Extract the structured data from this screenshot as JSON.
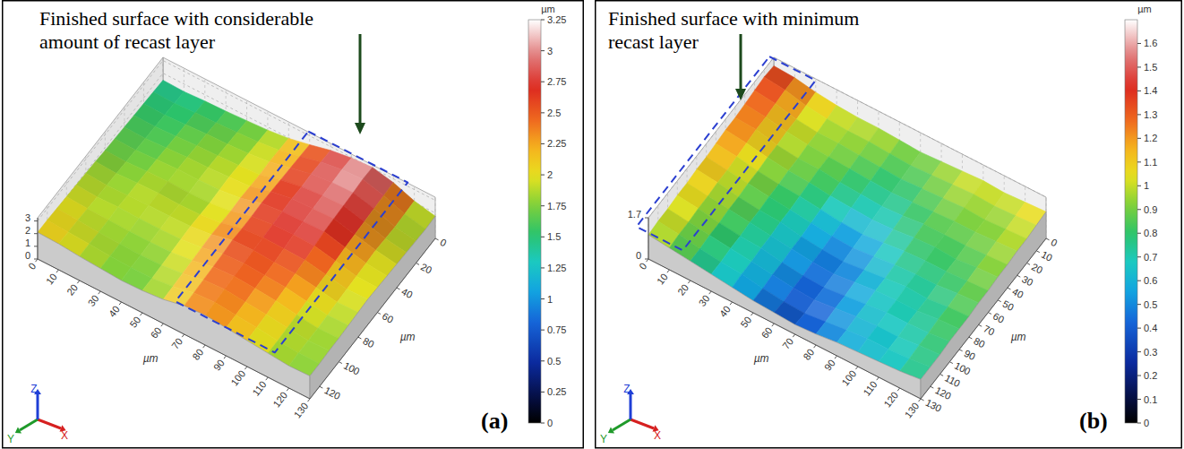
{
  "chart_data": [
    {
      "type": "surface",
      "annotation": [
        "Finished surface with considerable",
        "amount of recast layer"
      ],
      "panel_label": "(a)",
      "x_label": "µm",
      "y_label": "µm",
      "xlim": [
        0,
        130
      ],
      "xticks": [
        0,
        10,
        20,
        30,
        40,
        50,
        60,
        70,
        80,
        90,
        100,
        110,
        120,
        130
      ],
      "ylim": [
        0,
        130
      ],
      "yticks": [
        0,
        20,
        40,
        60,
        80,
        100,
        120
      ],
      "zlim": [
        0,
        3.25
      ],
      "zticks": [
        0,
        1,
        2,
        3
      ],
      "grid": true,
      "axes_triad": [
        "X",
        "Y",
        "Z"
      ],
      "x": [
        0,
        10,
        20,
        30,
        40,
        50,
        60,
        70,
        80,
        90,
        100,
        110,
        120,
        130
      ],
      "y": [
        0,
        10,
        20,
        30,
        40,
        50,
        60,
        70,
        80,
        90,
        100,
        110,
        120,
        130
      ],
      "z": [
        [
          1.45,
          1.4,
          1.5,
          1.55,
          1.65,
          1.75,
          1.95,
          2.3,
          2.7,
          2.95,
          3.05,
          2.7,
          2.1,
          1.75
        ],
        [
          1.5,
          1.45,
          1.55,
          1.6,
          1.7,
          1.8,
          2.0,
          2.35,
          2.75,
          3.0,
          3.1,
          2.65,
          2.05,
          1.7
        ],
        [
          1.55,
          1.5,
          1.6,
          1.7,
          1.75,
          1.85,
          2.05,
          2.4,
          2.8,
          2.95,
          3.0,
          2.6,
          2.0,
          1.75
        ],
        [
          1.6,
          1.55,
          1.65,
          1.75,
          1.8,
          1.9,
          2.0,
          2.45,
          2.75,
          2.9,
          2.95,
          2.55,
          2.05,
          1.8
        ],
        [
          1.65,
          1.6,
          1.7,
          1.8,
          1.85,
          1.95,
          2.05,
          2.5,
          2.8,
          2.85,
          2.9,
          2.5,
          2.1,
          1.85
        ],
        [
          1.7,
          1.65,
          1.75,
          1.85,
          1.85,
          1.9,
          2.1,
          2.55,
          2.75,
          2.8,
          2.85,
          2.45,
          2.05,
          1.9
        ],
        [
          1.75,
          1.7,
          1.8,
          1.85,
          1.8,
          1.85,
          2.05,
          2.5,
          2.7,
          2.75,
          2.7,
          2.35,
          2.0,
          1.95
        ],
        [
          1.85,
          1.75,
          1.85,
          1.9,
          1.85,
          1.9,
          2.1,
          2.5,
          2.65,
          2.6,
          2.55,
          2.25,
          1.95,
          2.0
        ],
        [
          1.9,
          1.8,
          1.85,
          1.9,
          1.9,
          1.95,
          2.15,
          2.55,
          2.6,
          2.5,
          2.45,
          2.2,
          1.9,
          1.95
        ],
        [
          1.95,
          1.85,
          1.9,
          1.85,
          1.85,
          1.9,
          2.1,
          2.45,
          2.55,
          2.45,
          2.35,
          2.1,
          1.85,
          1.9
        ],
        [
          2.0,
          1.9,
          1.85,
          1.8,
          1.8,
          1.85,
          2.05,
          2.4,
          2.5,
          2.4,
          2.25,
          2.0,
          1.8,
          1.85
        ],
        [
          2.05,
          1.95,
          1.85,
          1.8,
          1.75,
          1.8,
          2.0,
          2.35,
          2.45,
          2.3,
          2.15,
          1.95,
          1.8,
          1.85
        ],
        [
          2.1,
          2.0,
          1.9,
          1.8,
          1.75,
          1.75,
          1.95,
          2.3,
          2.4,
          2.25,
          2.1,
          1.9,
          1.8,
          1.8
        ],
        [
          2.1,
          2.05,
          1.9,
          1.8,
          1.7,
          1.75,
          1.9,
          2.25,
          2.35,
          2.2,
          2.05,
          1.9,
          1.75,
          1.8
        ]
      ],
      "colorbar": {
        "label": "µm",
        "range": [
          0,
          3.25
        ],
        "ticks": [
          0,
          0.25,
          0.5,
          0.75,
          1,
          1.25,
          1.5,
          1.75,
          2,
          2.25,
          2.5,
          2.75,
          3,
          3.25
        ]
      }
    },
    {
      "type": "surface",
      "annotation": [
        "Finished surface with minimum",
        "recast layer"
      ],
      "panel_label": "(b)",
      "x_label": "µm",
      "y_label": "µm",
      "xlim": [
        0,
        130
      ],
      "xticks": [
        0,
        10,
        20,
        30,
        40,
        50,
        60,
        70,
        80,
        90,
        100,
        110,
        120,
        130
      ],
      "ylim": [
        0,
        130
      ],
      "yticks": [
        0,
        10,
        20,
        30,
        40,
        50,
        60,
        70,
        80,
        90,
        100,
        110,
        120,
        130
      ],
      "zlim": [
        0,
        1.7
      ],
      "zticks": [
        0,
        1.7
      ],
      "grid": true,
      "axes_triad": [
        "X",
        "Y",
        "Z"
      ],
      "x": [
        0,
        10,
        20,
        30,
        40,
        50,
        60,
        70,
        80,
        90,
        100,
        110,
        120,
        130
      ],
      "y": [
        0,
        10,
        20,
        30,
        40,
        50,
        60,
        70,
        80,
        90,
        100,
        110,
        120,
        130
      ],
      "z": [
        [
          1.35,
          1.3,
          1.15,
          1.05,
          1.0,
          1.0,
          0.95,
          0.9,
          0.95,
          1.0,
          1.05,
          1.0,
          1.05,
          1.1
        ],
        [
          1.4,
          1.3,
          1.1,
          1.0,
          0.95,
          0.95,
          0.9,
          0.85,
          0.9,
          0.95,
          1.0,
          0.95,
          1.0,
          1.05
        ],
        [
          1.35,
          1.25,
          1.05,
          0.95,
          0.95,
          0.9,
          0.85,
          0.8,
          0.85,
          0.9,
          0.95,
          0.9,
          0.95,
          1.0
        ],
        [
          1.3,
          1.2,
          1.05,
          0.95,
          0.9,
          0.85,
          0.8,
          0.75,
          0.8,
          0.85,
          0.9,
          0.9,
          0.95,
          1.0
        ],
        [
          1.25,
          1.2,
          1.0,
          0.9,
          0.9,
          0.8,
          0.75,
          0.7,
          0.75,
          0.85,
          0.85,
          0.85,
          0.9,
          0.95
        ],
        [
          1.25,
          1.15,
          1.0,
          0.9,
          0.85,
          0.75,
          0.7,
          0.65,
          0.7,
          0.8,
          0.85,
          0.8,
          0.9,
          0.95
        ],
        [
          1.2,
          1.1,
          0.95,
          0.85,
          0.8,
          0.7,
          0.6,
          0.55,
          0.65,
          0.75,
          0.8,
          0.8,
          0.85,
          0.9
        ],
        [
          1.15,
          1.05,
          0.95,
          0.85,
          0.75,
          0.65,
          0.55,
          0.5,
          0.6,
          0.7,
          0.75,
          0.75,
          0.85,
          0.9
        ],
        [
          1.15,
          1.05,
          0.9,
          0.8,
          0.75,
          0.6,
          0.5,
          0.45,
          0.55,
          0.65,
          0.75,
          0.7,
          0.8,
          0.85
        ],
        [
          1.1,
          1.0,
          0.9,
          0.8,
          0.7,
          0.6,
          0.5,
          0.45,
          0.55,
          0.65,
          0.7,
          0.7,
          0.8,
          0.85
        ],
        [
          1.1,
          1.0,
          0.85,
          0.75,
          0.7,
          0.55,
          0.45,
          0.4,
          0.5,
          0.6,
          0.7,
          0.7,
          0.75,
          0.85
        ],
        [
          1.05,
          0.95,
          0.85,
          0.75,
          0.65,
          0.55,
          0.45,
          0.4,
          0.5,
          0.6,
          0.65,
          0.65,
          0.75,
          0.8
        ],
        [
          1.05,
          0.95,
          0.8,
          0.7,
          0.65,
          0.5,
          0.4,
          0.35,
          0.45,
          0.55,
          0.65,
          0.65,
          0.7,
          0.8
        ],
        [
          1.0,
          0.9,
          0.8,
          0.7,
          0.6,
          0.5,
          0.45,
          0.4,
          0.45,
          0.55,
          0.6,
          0.65,
          0.7,
          0.8
        ]
      ],
      "colorbar": {
        "label": "µm",
        "range": [
          0,
          1.7
        ],
        "ticks": [
          0,
          0.1,
          0.2,
          0.3,
          0.4,
          0.5,
          0.6,
          0.7,
          0.8,
          0.9,
          1,
          1.1,
          1.2,
          1.3,
          1.4,
          1.5,
          1.6
        ]
      }
    }
  ]
}
